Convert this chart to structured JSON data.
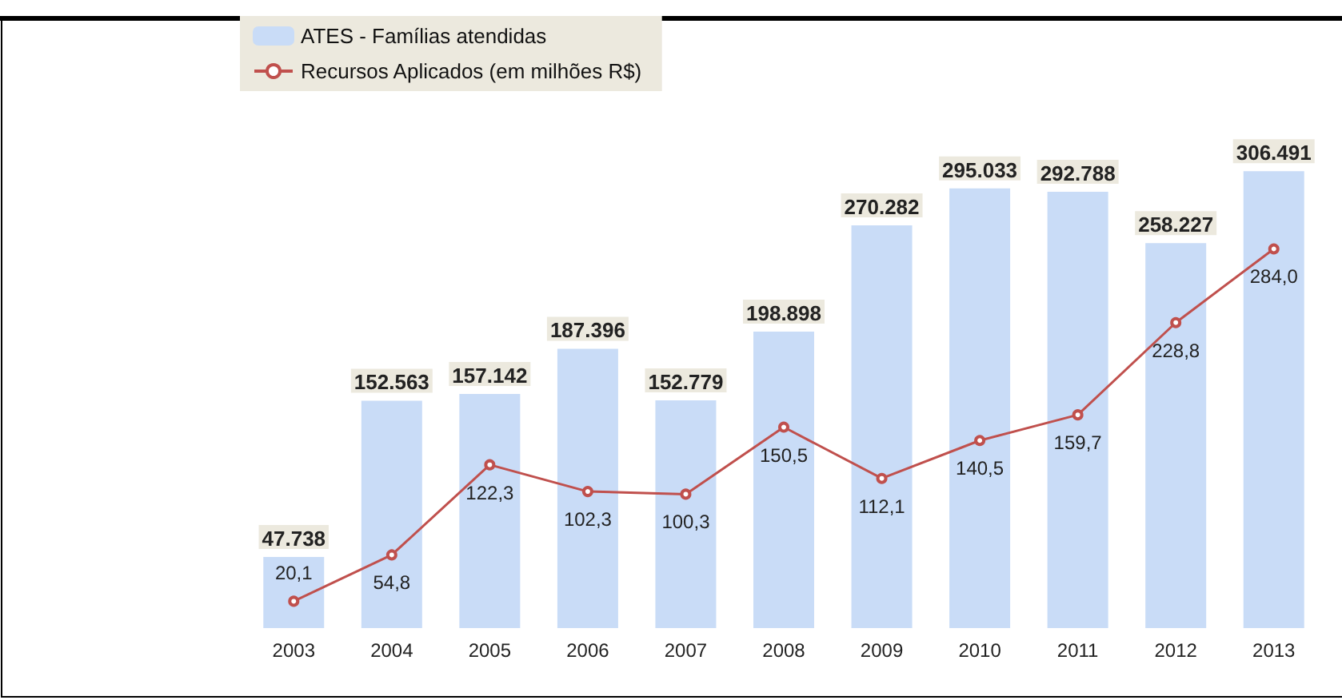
{
  "chart_data": {
    "type": "bar",
    "categories": [
      "2003",
      "2004",
      "2005",
      "2006",
      "2007",
      "2008",
      "2009",
      "2010",
      "2011",
      "2012",
      "2013"
    ],
    "series": [
      {
        "name": "ATES - Famílias atendidas",
        "color": "#c9dcf7",
        "values": [
          47738,
          152563,
          157142,
          187396,
          152779,
          198898,
          270282,
          295033,
          292788,
          258227,
          306491
        ],
        "value_labels": [
          "47.738",
          "152.563",
          "157.142",
          "187.396",
          "152.779",
          "198.898",
          "270.282",
          "295.033",
          "292.788",
          "258.227",
          "306.491"
        ]
      },
      {
        "name": "Recursos Aplicados (em milhões R$)",
        "type": "line",
        "axis": "y2",
        "color": "#c0504d",
        "values": [
          20.1,
          54.8,
          122.3,
          102.3,
          100.3,
          150.5,
          112.1,
          140.5,
          159.7,
          228.8,
          284.0
        ],
        "value_labels": [
          "20,1",
          "54,8",
          "122,3",
          "102,3",
          "100,3",
          "150,5",
          "112,1",
          "140,5",
          "159,7",
          "228,8",
          "284,0"
        ]
      }
    ],
    "legend": "top left",
    "marker": "circle",
    "grid": false
  }
}
